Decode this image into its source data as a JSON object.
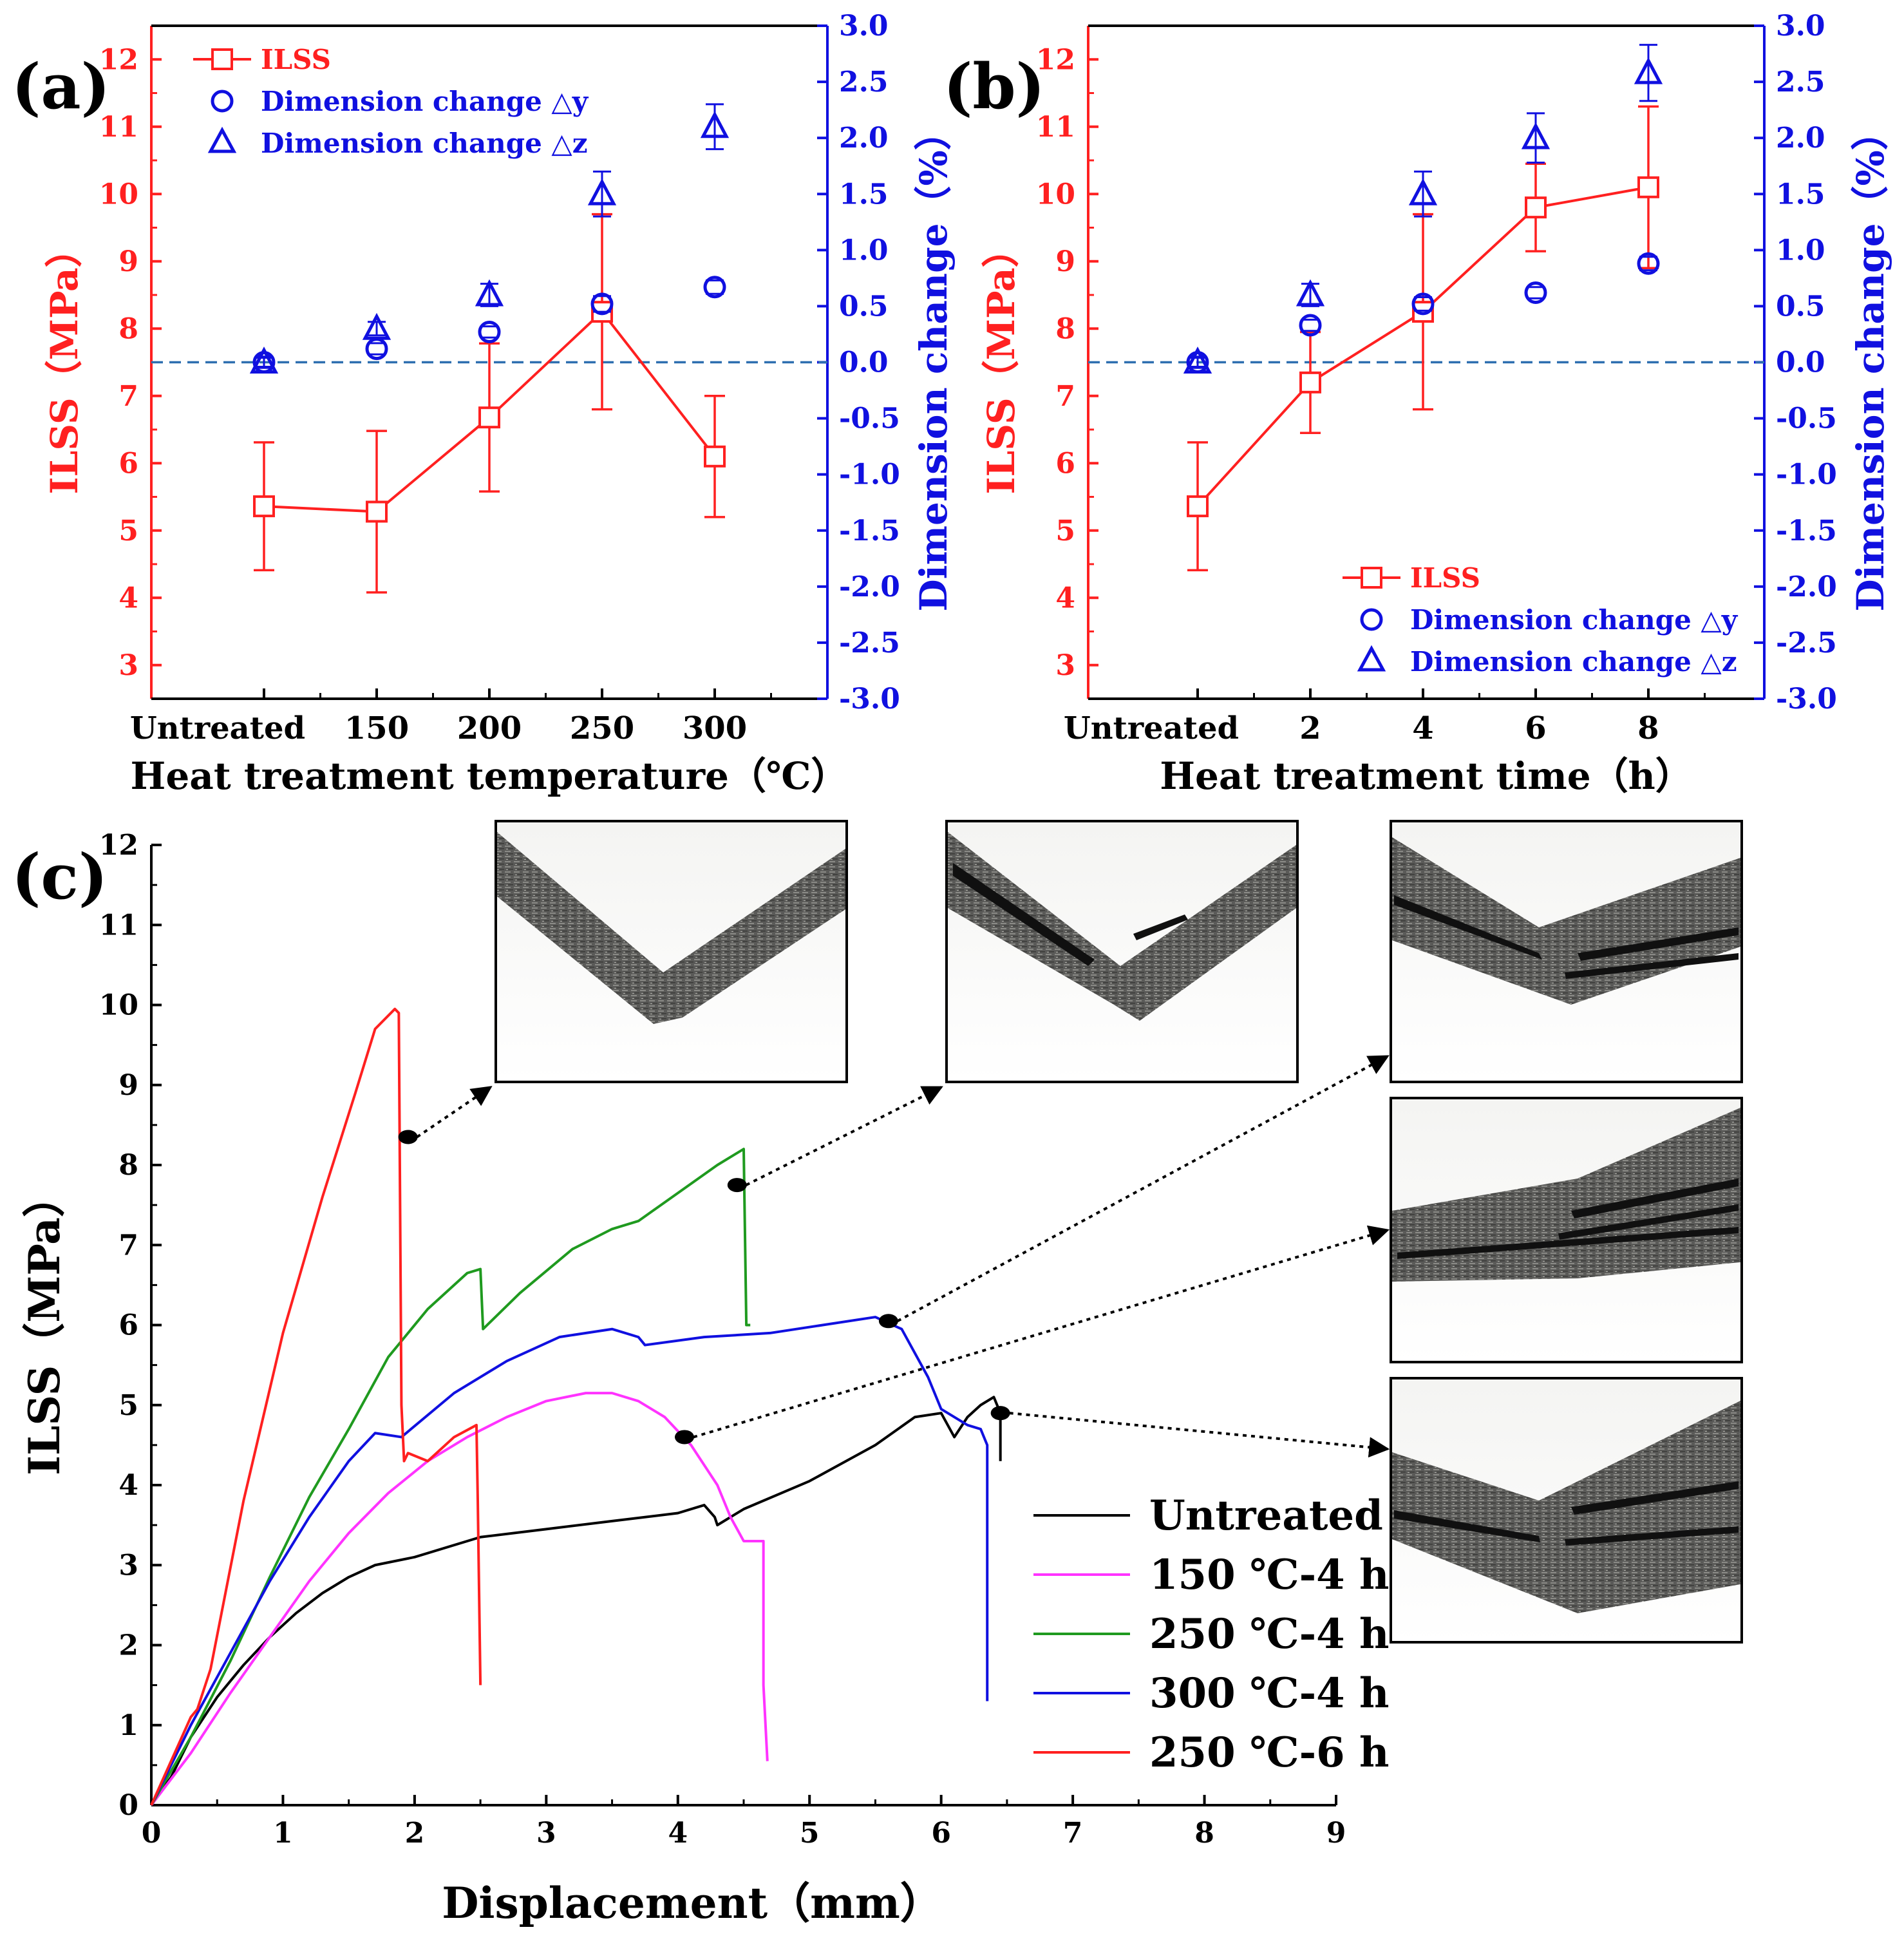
{
  "colors": {
    "red": "#ff2020",
    "blue": "#1010e0",
    "black": "#000000",
    "magenta": "#ff33ff",
    "green": "#1f9a1f",
    "zero_line": "#2e6fb0"
  },
  "chart_data": [
    {
      "panel": "(a)",
      "type": "scatter",
      "categories": [
        "Untreated",
        "150",
        "200",
        "250",
        "300"
      ],
      "xlabel": "Heat treatment temperature（℃）",
      "ylabel_left": "ILSS（MPa）",
      "ylabel_right": "Dimension change（%）",
      "ylim_left": [
        2.5,
        12.5
      ],
      "yticks_left": [
        3,
        4,
        5,
        6,
        7,
        8,
        9,
        10,
        11,
        12
      ],
      "ylim_right": [
        -3.0,
        3.0
      ],
      "yticks_right": [
        "-3.0",
        "-2.5",
        "-2.0",
        "-1.5",
        "-1.0",
        "-0.5",
        "0.0",
        "0.5",
        "1.0",
        "1.5",
        "2.0",
        "2.5",
        "3.0"
      ],
      "series": [
        {
          "name": "ILSS",
          "axis": "left",
          "marker": "square",
          "line": true,
          "values": [
            5.36,
            5.28,
            6.68,
            8.25,
            6.1
          ],
          "err": [
            0.95,
            1.2,
            1.1,
            1.45,
            0.9
          ]
        },
        {
          "name": "Dimension change △y",
          "axis": "right",
          "marker": "circle",
          "values": [
            0.0,
            0.12,
            0.27,
            0.52,
            0.67
          ],
          "err": [
            0.04,
            0.05,
            0.05,
            0.07,
            0.06
          ]
        },
        {
          "name": "Dimension change △z",
          "axis": "right",
          "marker": "triangle",
          "values": [
            0.0,
            0.3,
            0.6,
            1.5,
            2.1
          ],
          "err": [
            0.05,
            0.06,
            0.1,
            0.2,
            0.2
          ]
        }
      ],
      "legend": "top-left",
      "zero_line": 0.0
    },
    {
      "panel": "(b)",
      "type": "scatter",
      "categories": [
        "Untreated",
        "2",
        "4",
        "6",
        "8"
      ],
      "xlabel": "Heat treatment time（h）",
      "ylabel_left": "ILSS（MPa）",
      "ylabel_right": "Dimension change（%）",
      "ylim_left": [
        2.5,
        12.5
      ],
      "yticks_left": [
        3,
        4,
        5,
        6,
        7,
        8,
        9,
        10,
        11,
        12
      ],
      "ylim_right": [
        -3.0,
        3.0
      ],
      "yticks_right": [
        "-3.0",
        "-2.5",
        "-2.0",
        "-1.5",
        "-1.0",
        "-0.5",
        "0.0",
        "0.5",
        "1.0",
        "1.5",
        "2.0",
        "2.5",
        "3.0"
      ],
      "series": [
        {
          "name": "ILSS",
          "axis": "left",
          "marker": "square",
          "line": true,
          "values": [
            5.36,
            7.2,
            8.25,
            9.8,
            10.1
          ],
          "err": [
            0.95,
            0.75,
            1.45,
            0.65,
            1.2
          ]
        },
        {
          "name": "Dimension change △y",
          "axis": "right",
          "marker": "circle",
          "values": [
            0.0,
            0.33,
            0.52,
            0.62,
            0.88
          ],
          "err": [
            0.04,
            0.05,
            0.06,
            0.05,
            0.06
          ]
        },
        {
          "name": "Dimension change △z",
          "axis": "right",
          "marker": "triangle",
          "values": [
            0.0,
            0.6,
            1.5,
            2.0,
            2.58
          ],
          "err": [
            0.05,
            0.1,
            0.2,
            0.22,
            0.25
          ]
        }
      ],
      "legend": "bottom-right",
      "zero_line": 0.0
    },
    {
      "panel": "(c)",
      "type": "line",
      "xlabel": "Displacement（mm）",
      "ylabel": "ILSS（MPa）",
      "xlim": [
        0,
        9
      ],
      "ylim": [
        0,
        12
      ],
      "xticks": [
        0,
        1,
        2,
        3,
        4,
        5,
        6,
        7,
        8,
        9
      ],
      "yticks": [
        0,
        1,
        2,
        3,
        4,
        5,
        6,
        7,
        8,
        9,
        10,
        11,
        12
      ],
      "legend": "bottom-right",
      "series": [
        {
          "name": "Untreated",
          "x": [
            0,
            0.15,
            0.3,
            0.5,
            0.7,
            0.9,
            1.1,
            1.3,
            1.5,
            1.7,
            2.0,
            2.5,
            3.0,
            3.5,
            4.0,
            4.2,
            4.28,
            4.3,
            4.5,
            5.0,
            5.5,
            5.8,
            6.0,
            6.1,
            6.2,
            6.3,
            6.4,
            6.45,
            6.45
          ],
          "y": [
            0,
            0.35,
            0.85,
            1.35,
            1.75,
            2.1,
            2.4,
            2.65,
            2.85,
            3.0,
            3.1,
            3.35,
            3.45,
            3.55,
            3.65,
            3.75,
            3.6,
            3.5,
            3.7,
            4.05,
            4.5,
            4.85,
            4.9,
            4.6,
            4.85,
            5.0,
            5.1,
            4.9,
            4.3
          ]
        },
        {
          "name": "150 ℃-4 h",
          "x": [
            0,
            0.3,
            0.6,
            0.9,
            1.2,
            1.5,
            1.8,
            2.1,
            2.4,
            2.7,
            3.0,
            3.3,
            3.5,
            3.7,
            3.9,
            4.1,
            4.3,
            4.4,
            4.5,
            4.65,
            4.65,
            4.68
          ],
          "y": [
            0,
            0.65,
            1.4,
            2.1,
            2.8,
            3.4,
            3.9,
            4.3,
            4.6,
            4.85,
            5.05,
            5.15,
            5.15,
            5.05,
            4.85,
            4.5,
            4.0,
            3.6,
            3.3,
            3.3,
            1.5,
            0.55
          ]
        },
        {
          "name": "250 ℃-4 h",
          "x": [
            0,
            0.3,
            0.6,
            0.9,
            1.2,
            1.5,
            1.8,
            2.1,
            2.4,
            2.5,
            2.52,
            2.8,
            3.2,
            3.5,
            3.7,
            4.0,
            4.3,
            4.5,
            4.52,
            4.55
          ],
          "y": [
            0,
            0.85,
            1.8,
            2.85,
            3.85,
            4.7,
            5.6,
            6.2,
            6.65,
            6.7,
            5.95,
            6.4,
            6.95,
            7.2,
            7.3,
            7.65,
            8.0,
            8.2,
            6.0,
            6.0
          ]
        },
        {
          "name": "300 ℃-4 h",
          "x": [
            0,
            0.3,
            0.6,
            0.9,
            1.2,
            1.5,
            1.7,
            1.9,
            2.3,
            2.7,
            3.1,
            3.5,
            3.7,
            3.75,
            4.2,
            4.7,
            5.1,
            5.5,
            5.7,
            5.9,
            6.0,
            6.2,
            6.3,
            6.35,
            6.35
          ],
          "y": [
            0,
            1.0,
            1.9,
            2.8,
            3.6,
            4.3,
            4.65,
            4.6,
            5.15,
            5.55,
            5.85,
            5.95,
            5.85,
            5.75,
            5.85,
            5.9,
            6.0,
            6.1,
            5.95,
            5.35,
            4.95,
            4.75,
            4.7,
            4.5,
            1.3
          ]
        },
        {
          "name": "250 ℃-6 h",
          "x": [
            0,
            0.3,
            0.35,
            0.45,
            0.7,
            1.0,
            1.3,
            1.55,
            1.7,
            1.85,
            1.88,
            1.9,
            1.92,
            1.95,
            2.1,
            2.3,
            2.47,
            2.48,
            2.5
          ],
          "y": [
            0,
            1.1,
            1.2,
            1.7,
            3.8,
            5.9,
            7.6,
            8.9,
            9.7,
            9.95,
            9.9,
            5.0,
            4.3,
            4.4,
            4.3,
            4.6,
            4.75,
            3.8,
            1.5
          ]
        }
      ],
      "callouts": [
        {
          "from": [
            1.95,
            8.35
          ],
          "to_inset": 0
        },
        {
          "from": [
            4.45,
            7.75
          ],
          "to_inset": 1
        },
        {
          "from": [
            5.6,
            6.05
          ],
          "to_inset": 2
        },
        {
          "from": [
            4.05,
            4.6
          ],
          "to_inset": 3
        },
        {
          "from": [
            6.45,
            4.9
          ],
          "to_inset": 4
        }
      ]
    }
  ]
}
